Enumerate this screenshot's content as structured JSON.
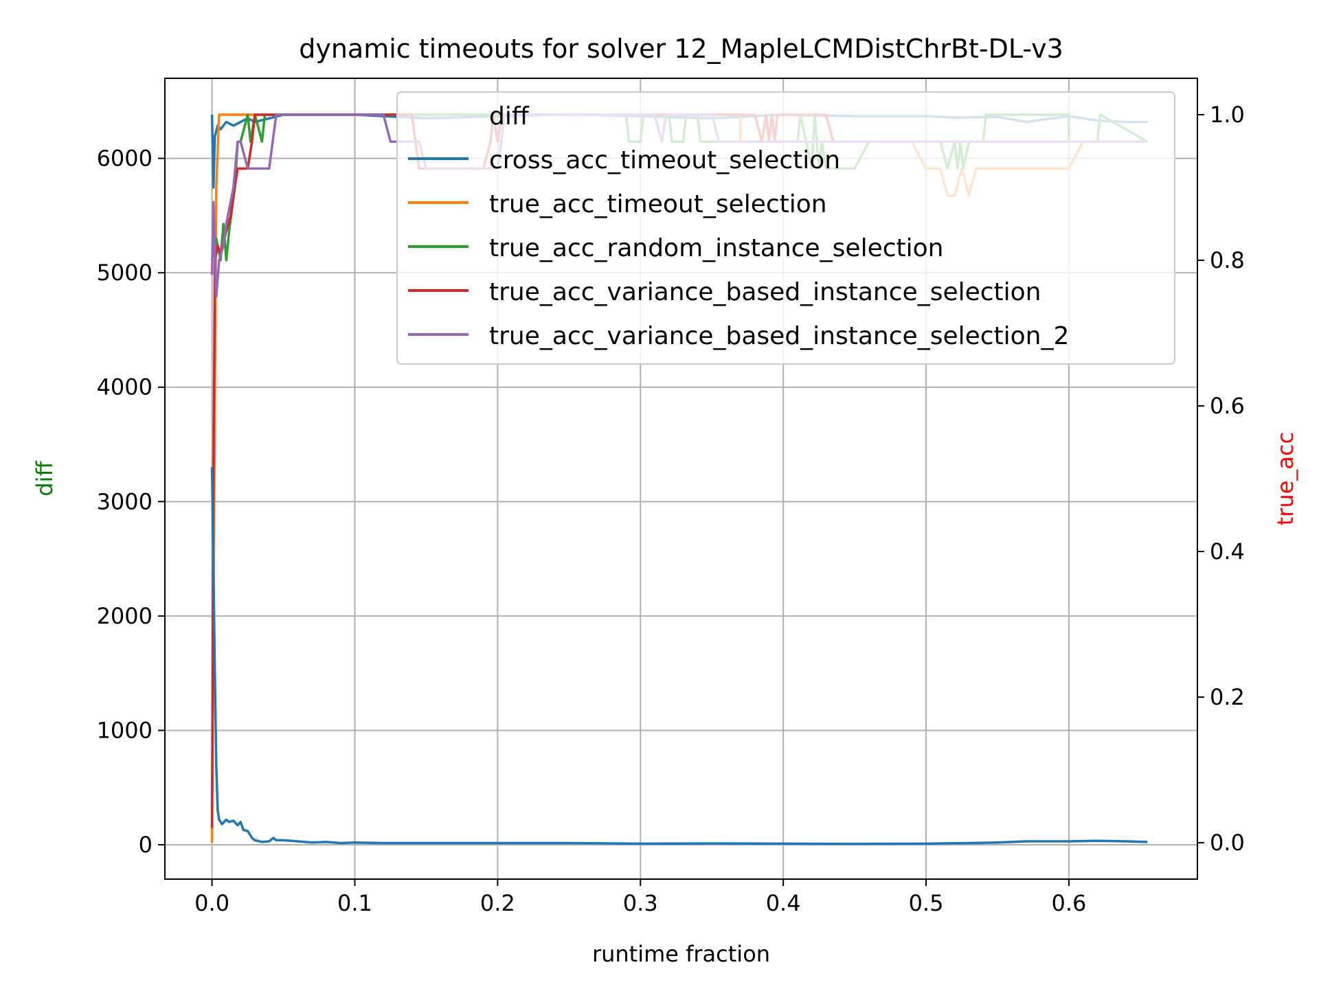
{
  "chart_data": {
    "type": "line",
    "title": "dynamic timeouts for solver 12_MapleLCMDistChrBt-DL-v3",
    "xlabel": "runtime fraction",
    "ylabel_left": "diff",
    "ylabel_right": "true_acc",
    "xlim": [
      -0.033,
      0.69
    ],
    "ylim_left": [
      -300,
      6700
    ],
    "ylim_right": [
      -0.05,
      1.05
    ],
    "xticks": [
      "0.0",
      "0.1",
      "0.2",
      "0.3",
      "0.4",
      "0.5",
      "0.6"
    ],
    "yticks_left": [
      "0",
      "1000",
      "2000",
      "3000",
      "4000",
      "5000",
      "6000"
    ],
    "yticks_right": [
      "0.0",
      "0.2",
      "0.4",
      "0.6",
      "0.8",
      "1.0"
    ],
    "grid": true,
    "legend_position": "upper-right",
    "colors": {
      "diff": "#1f77b4",
      "cross_acc_timeout_selection": "#1f77b4",
      "true_acc_timeout_selection": "#ff7f0e",
      "true_acc_random_instance_selection": "#2ca02c",
      "true_acc_variance_based_instance_selection": "#d62728",
      "true_acc_variance_based_instance_selection_2": "#9467bd",
      "ylabel_left": "#008000",
      "ylabel_right": "#ff0000"
    },
    "series": [
      {
        "name": "diff",
        "axis": "left",
        "x": [
          0,
          0.002,
          0.003,
          0.004,
          0.005,
          0.007,
          0.01,
          0.012,
          0.015,
          0.018,
          0.02,
          0.022,
          0.025,
          0.028,
          0.03,
          0.035,
          0.04,
          0.043,
          0.045,
          0.05,
          0.06,
          0.07,
          0.08,
          0.09,
          0.1,
          0.12,
          0.15,
          0.2,
          0.25,
          0.3,
          0.35,
          0.4,
          0.45,
          0.5,
          0.53,
          0.55,
          0.57,
          0.6,
          0.62,
          0.64,
          0.655
        ],
        "y": [
          3300,
          1500,
          700,
          300,
          220,
          180,
          220,
          200,
          210,
          170,
          200,
          130,
          120,
          60,
          40,
          25,
          30,
          60,
          40,
          40,
          30,
          20,
          25,
          15,
          20,
          15,
          15,
          15,
          15,
          10,
          12,
          10,
          8,
          10,
          15,
          20,
          30,
          30,
          35,
          30,
          25
        ]
      },
      {
        "name": "cross_acc_timeout_selection",
        "axis": "right",
        "x": [
          0,
          0.001,
          0.002,
          0.004,
          0.006,
          0.01,
          0.015,
          0.02,
          0.025,
          0.03,
          0.04,
          0.05,
          0.1,
          0.15,
          0.2,
          0.25,
          0.3,
          0.35,
          0.4,
          0.45,
          0.48,
          0.5,
          0.52,
          0.55,
          0.57,
          0.6,
          0.62,
          0.64,
          0.655
        ],
        "y": [
          1.0,
          0.9,
          0.97,
          0.985,
          0.98,
          0.99,
          0.985,
          0.99,
          0.995,
          0.99,
          0.995,
          1.0,
          1.0,
          0.995,
          0.998,
          1.0,
          0.998,
          0.995,
          1.0,
          0.998,
          0.998,
          0.998,
          0.996,
          0.997,
          0.99,
          0.998,
          0.992,
          0.99,
          0.99
        ]
      },
      {
        "name": "true_acc_timeout_selection",
        "axis": "right",
        "x": [
          0,
          0.003,
          0.005,
          0.03,
          0.03,
          0.37,
          0.37,
          0.43,
          0.43,
          0.49,
          0.5,
          0.51,
          0.515,
          0.52,
          0.525,
          0.53,
          0.535,
          0.6,
          0.61,
          0.655
        ],
        "y": [
          0.0,
          0.9,
          1.0,
          1.0,
          1.0,
          1.0,
          0.963,
          0.963,
          0.963,
          0.963,
          0.926,
          0.926,
          0.889,
          0.889,
          0.926,
          0.889,
          0.926,
          0.926,
          0.963,
          0.963
        ]
      },
      {
        "name": "true_acc_random_instance_selection",
        "axis": "right",
        "x": [
          0,
          0.003,
          0.006,
          0.008,
          0.01,
          0.012,
          0.014,
          0.016,
          0.018,
          0.02,
          0.025,
          0.027,
          0.03,
          0.035,
          0.037,
          0.04,
          0.05,
          0.29,
          0.292,
          0.3,
          0.302,
          0.32,
          0.322,
          0.33,
          0.332,
          0.34,
          0.342,
          0.39,
          0.4,
          0.41,
          0.412,
          0.42,
          0.422,
          0.425,
          0.427,
          0.43,
          0.44,
          0.45,
          0.46,
          0.51,
          0.515,
          0.52,
          0.522,
          0.524,
          0.526,
          0.53,
          0.54,
          0.542,
          0.6,
          0.6,
          0.62,
          0.622,
          0.655
        ],
        "y": [
          0.8,
          0.83,
          0.8,
          0.85,
          0.8,
          0.84,
          0.87,
          0.9,
          0.963,
          0.963,
          1.0,
          0.963,
          1.0,
          0.963,
          1.0,
          1.0,
          1.0,
          1.0,
          0.963,
          0.963,
          1.0,
          1.0,
          0.963,
          0.963,
          1.0,
          1.0,
          0.963,
          0.963,
          0.963,
          0.963,
          1.0,
          0.926,
          1.0,
          0.926,
          0.963,
          0.926,
          0.926,
          0.926,
          0.963,
          0.963,
          0.926,
          0.963,
          0.926,
          0.963,
          0.926,
          0.963,
          0.963,
          1.0,
          1.0,
          0.963,
          0.963,
          1.0,
          0.963
        ]
      },
      {
        "name": "true_acc_variance_based_instance_selection",
        "axis": "right",
        "x": [
          0,
          0.001,
          0.002,
          0.004,
          0.006,
          0.01,
          0.013,
          0.015,
          0.018,
          0.02,
          0.025,
          0.028,
          0.03,
          0.035,
          0.04,
          0.045,
          0.14,
          0.145,
          0.19,
          0.195,
          0.197,
          0.2,
          0.203,
          0.38,
          0.385,
          0.388,
          0.39,
          0.392,
          0.394,
          0.396,
          0.43,
          0.435,
          0.655
        ],
        "y": [
          0.02,
          0.5,
          0.8,
          0.82,
          0.81,
          0.84,
          0.86,
          0.89,
          0.926,
          0.926,
          0.926,
          0.963,
          1.0,
          1.0,
          1.0,
          1.0,
          1.0,
          0.926,
          0.926,
          0.963,
          1.0,
          0.963,
          1.0,
          1.0,
          0.963,
          1.0,
          0.963,
          1.0,
          0.963,
          1.0,
          1.0,
          0.963,
          0.963
        ]
      },
      {
        "name": "true_acc_variance_based_instance_selection_2",
        "axis": "right",
        "x": [
          0,
          0.001,
          0.003,
          0.005,
          0.008,
          0.01,
          0.015,
          0.018,
          0.02,
          0.025,
          0.03,
          0.04,
          0.045,
          0.12,
          0.125,
          0.145,
          0.15,
          0.2,
          0.205,
          0.31,
          0.315,
          0.318,
          0.35,
          0.355,
          0.47,
          0.475,
          0.655
        ],
        "y": [
          0.78,
          0.88,
          0.75,
          0.8,
          0.82,
          0.85,
          0.9,
          0.963,
          0.963,
          0.926,
          0.926,
          0.926,
          1.0,
          1.0,
          0.963,
          0.963,
          0.926,
          0.926,
          1.0,
          1.0,
          0.963,
          1.0,
          1.0,
          0.963,
          0.963,
          0.963,
          0.963
        ]
      }
    ]
  }
}
